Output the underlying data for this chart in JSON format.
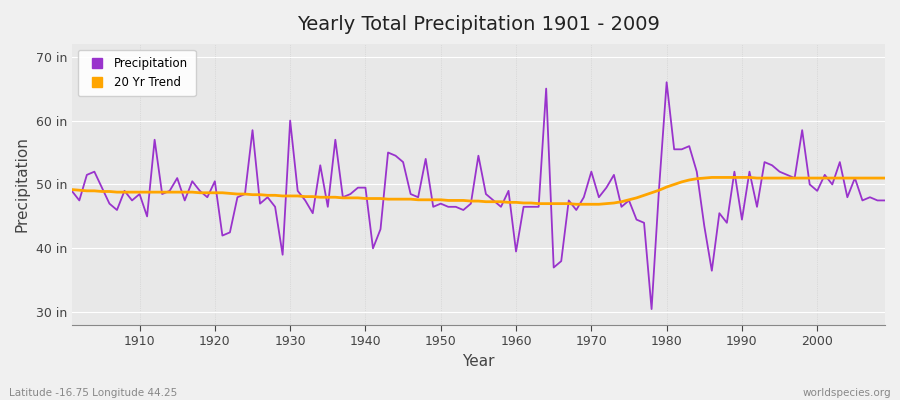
{
  "title": "Yearly Total Precipitation 1901 - 2009",
  "xlabel": "Year",
  "ylabel": "Precipitation",
  "xlim": [
    1901,
    2009
  ],
  "ylim": [
    28,
    72
  ],
  "yticks": [
    30,
    40,
    50,
    60,
    70
  ],
  "ytick_labels": [
    "30 in",
    "40 in",
    "50 in",
    "60 in",
    "70 in"
  ],
  "xticks": [
    1910,
    1920,
    1930,
    1940,
    1950,
    1960,
    1970,
    1980,
    1990,
    2000
  ],
  "fig_bg_color": "#f0f0f0",
  "plot_bg_color": "#e8e8e8",
  "precip_color": "#9933cc",
  "trend_color": "#FFA500",
  "precip_linewidth": 1.3,
  "trend_linewidth": 2.0,
  "legend_labels": [
    "Precipitation",
    "20 Yr Trend"
  ],
  "footer_left": "Latitude -16.75 Longitude 44.25",
  "footer_right": "worldspecies.org",
  "years": [
    1901,
    1902,
    1903,
    1904,
    1905,
    1906,
    1907,
    1908,
    1909,
    1910,
    1911,
    1912,
    1913,
    1914,
    1915,
    1916,
    1917,
    1918,
    1919,
    1920,
    1921,
    1922,
    1923,
    1924,
    1925,
    1926,
    1927,
    1928,
    1929,
    1930,
    1931,
    1932,
    1933,
    1934,
    1935,
    1936,
    1937,
    1938,
    1939,
    1940,
    1941,
    1942,
    1943,
    1944,
    1945,
    1946,
    1947,
    1948,
    1949,
    1950,
    1951,
    1952,
    1953,
    1954,
    1955,
    1956,
    1957,
    1958,
    1959,
    1960,
    1961,
    1962,
    1963,
    1964,
    1965,
    1966,
    1967,
    1968,
    1969,
    1970,
    1971,
    1972,
    1973,
    1974,
    1975,
    1976,
    1977,
    1978,
    1979,
    1980,
    1981,
    1982,
    1983,
    1984,
    1985,
    1986,
    1987,
    1988,
    1989,
    1990,
    1991,
    1992,
    1993,
    1994,
    1995,
    1996,
    1997,
    1998,
    1999,
    2000,
    2001,
    2002,
    2003,
    2004,
    2005,
    2006,
    2007,
    2008,
    2009
  ],
  "precip": [
    49.0,
    47.5,
    51.5,
    52.0,
    49.5,
    47.0,
    46.0,
    49.0,
    47.5,
    48.5,
    45.0,
    57.0,
    48.5,
    49.0,
    51.0,
    47.5,
    50.5,
    49.0,
    48.0,
    50.5,
    42.0,
    42.5,
    48.0,
    48.5,
    58.5,
    47.0,
    48.0,
    46.5,
    39.0,
    60.0,
    49.0,
    47.5,
    45.5,
    53.0,
    46.5,
    57.0,
    48.0,
    48.5,
    49.5,
    49.5,
    40.0,
    43.0,
    55.0,
    54.5,
    53.5,
    48.5,
    48.0,
    54.0,
    46.5,
    47.0,
    46.5,
    46.5,
    46.0,
    47.0,
    54.5,
    48.5,
    47.5,
    46.5,
    49.0,
    39.5,
    46.5,
    46.5,
    46.5,
    65.0,
    37.0,
    38.0,
    47.5,
    46.0,
    48.0,
    52.0,
    48.0,
    49.5,
    51.5,
    46.5,
    47.5,
    44.5,
    44.0,
    30.5,
    49.5,
    66.0,
    55.5,
    55.5,
    56.0,
    52.0,
    43.5,
    36.5,
    45.5,
    44.0,
    52.0,
    44.5,
    52.0,
    46.5,
    53.5,
    53.0,
    52.0,
    51.5,
    51.0,
    58.5,
    50.0,
    49.0,
    51.5,
    50.0,
    53.5,
    48.0,
    51.0,
    47.5,
    48.0,
    47.5,
    47.5
  ],
  "trend": [
    49.2,
    49.1,
    49.0,
    49.0,
    48.9,
    48.9,
    48.8,
    48.8,
    48.8,
    48.8,
    48.8,
    48.8,
    48.8,
    48.8,
    48.8,
    48.8,
    48.8,
    48.7,
    48.7,
    48.7,
    48.7,
    48.6,
    48.5,
    48.5,
    48.4,
    48.4,
    48.3,
    48.3,
    48.2,
    48.2,
    48.2,
    48.1,
    48.1,
    48.0,
    48.0,
    48.0,
    47.9,
    47.9,
    47.9,
    47.8,
    47.8,
    47.8,
    47.7,
    47.7,
    47.7,
    47.7,
    47.6,
    47.6,
    47.6,
    47.6,
    47.5,
    47.5,
    47.5,
    47.4,
    47.4,
    47.3,
    47.3,
    47.3,
    47.2,
    47.2,
    47.1,
    47.1,
    47.0,
    47.0,
    47.0,
    47.0,
    47.0,
    46.9,
    46.9,
    46.9,
    46.9,
    47.0,
    47.1,
    47.3,
    47.6,
    47.9,
    48.3,
    48.7,
    49.1,
    49.6,
    50.0,
    50.4,
    50.7,
    50.9,
    51.0,
    51.1,
    51.1,
    51.1,
    51.1,
    51.1,
    51.1,
    51.0,
    51.0,
    51.0,
    51.0,
    51.0,
    51.0,
    51.0,
    51.0,
    51.0,
    51.0,
    51.0,
    51.0,
    51.0,
    51.0,
    51.0,
    51.0,
    51.0,
    51.0
  ]
}
